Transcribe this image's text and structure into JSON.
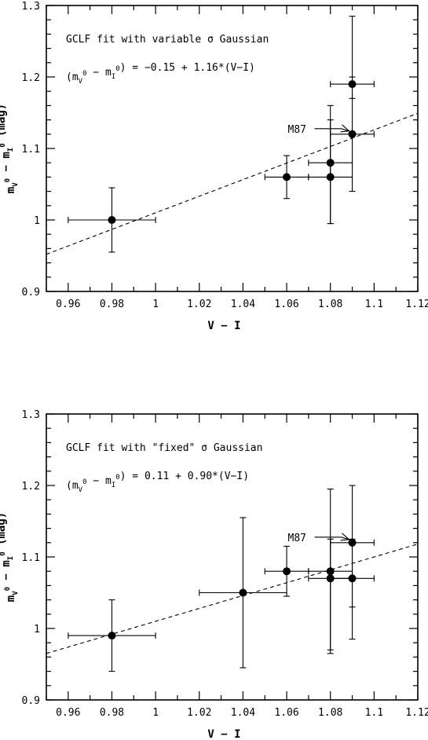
{
  "chart_data": [
    {
      "type": "scatter",
      "title": "",
      "xlabel": "V − I",
      "ylabel": "m_V^0 − m_I^0 (mag)",
      "xlim": [
        0.95,
        1.12
      ],
      "ylim": [
        0.9,
        1.3
      ],
      "xticks": [
        0.96,
        0.98,
        1.0,
        1.02,
        1.04,
        1.06,
        1.08,
        1.1,
        1.12
      ],
      "xtick_labels": [
        "0.96",
        "0.98",
        "1",
        "1.02",
        "1.04",
        "1.06",
        "1.08",
        "1.1",
        "1.12"
      ],
      "yticks": [
        0.9,
        1.0,
        1.1,
        1.2,
        1.3
      ],
      "ytick_labels": [
        "0.9",
        "1",
        "1.1",
        "1.2",
        "1.3"
      ],
      "annotation_line1": "GCLF fit with variable σ Gaussian",
      "annotation_line2": "(m_V^0 − m_I^0) = −0.15 + 1.16*(V−I)",
      "fit": {
        "intercept": -0.15,
        "slope": 1.16
      },
      "points": [
        {
          "x": 0.98,
          "y": 1.0,
          "xerr": 0.02,
          "yerr_lo": 0.045,
          "yerr_hi": 0.045
        },
        {
          "x": 1.06,
          "y": 1.06,
          "xerr": 0.01,
          "yerr_lo": 0.03,
          "yerr_hi": 0.03
        },
        {
          "x": 1.08,
          "y": 1.06,
          "xerr": 0.01,
          "yerr_lo": 0.065,
          "yerr_hi": 0.08
        },
        {
          "x": 1.08,
          "y": 1.08,
          "xerr": 0.01,
          "yerr_lo": 0.085,
          "yerr_hi": 0.08
        },
        {
          "x": 1.09,
          "y": 1.12,
          "xerr": 0.01,
          "yerr_lo": 0.08,
          "yerr_hi": 0.165
        },
        {
          "x": 1.09,
          "y": 1.19,
          "xerr": 0.01,
          "yerr_lo": 0.02,
          "yerr_hi": 0.01
        }
      ],
      "label": {
        "text": "M87",
        "x": 1.09,
        "y": 1.12
      }
    },
    {
      "type": "scatter",
      "title": "",
      "xlabel": "V − I",
      "ylabel": "m_V^0 − m_I^0 (mag)",
      "xlim": [
        0.95,
        1.12
      ],
      "ylim": [
        0.9,
        1.3
      ],
      "xticks": [
        0.96,
        0.98,
        1.0,
        1.02,
        1.04,
        1.06,
        1.08,
        1.1,
        1.12
      ],
      "xtick_labels": [
        "0.96",
        "0.98",
        "1",
        "1.02",
        "1.04",
        "1.06",
        "1.08",
        "1.1",
        "1.12"
      ],
      "yticks": [
        0.9,
        1.0,
        1.1,
        1.2,
        1.3
      ],
      "ytick_labels": [
        "0.9",
        "1",
        "1.1",
        "1.2",
        "1.3"
      ],
      "annotation_line1": "GCLF fit with \"fixed\" σ Gaussian",
      "annotation_line2": "(m_V^0 − m_I^0) =  0.11 + 0.90*(V−I)",
      "fit": {
        "intercept": 0.11,
        "slope": 0.9
      },
      "points": [
        {
          "x": 0.98,
          "y": 0.99,
          "xerr": 0.02,
          "yerr_lo": 0.05,
          "yerr_hi": 0.05
        },
        {
          "x": 1.04,
          "y": 1.05,
          "xerr": 0.02,
          "yerr_lo": 0.105,
          "yerr_hi": 0.105
        },
        {
          "x": 1.06,
          "y": 1.08,
          "xerr": 0.01,
          "yerr_lo": 0.035,
          "yerr_hi": 0.035
        },
        {
          "x": 1.08,
          "y": 1.08,
          "xerr": 0.01,
          "yerr_lo": 0.11,
          "yerr_hi": 0.115
        },
        {
          "x": 1.08,
          "y": 1.07,
          "xerr": 0.01,
          "yerr_lo": 0.105,
          "yerr_hi": 0.055
        },
        {
          "x": 1.09,
          "y": 1.07,
          "xerr": 0.01,
          "yerr_lo": 0.085,
          "yerr_hi": 0.055
        },
        {
          "x": 1.09,
          "y": 1.12,
          "xerr": 0.01,
          "yerr_lo": 0.09,
          "yerr_hi": 0.08
        }
      ],
      "label": {
        "text": "M87",
        "x": 1.09,
        "y": 1.12
      }
    }
  ]
}
